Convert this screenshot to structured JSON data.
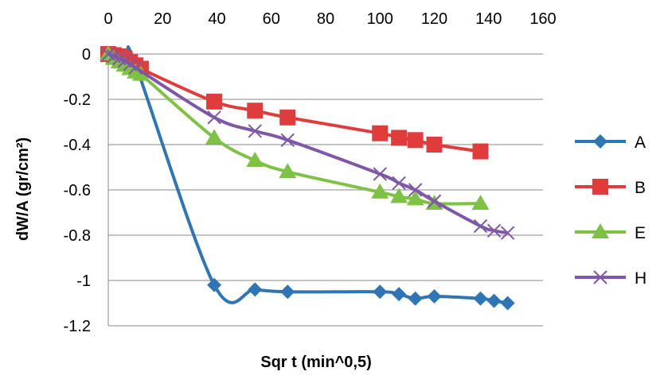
{
  "chart_data": {
    "type": "line",
    "title": "",
    "xlabel": "Sqr t (min^0,5)",
    "ylabel": "dW/A (gr/cm²)",
    "xlim": [
      0,
      160
    ],
    "ylim": [
      -1.2,
      0
    ],
    "x_ticks": [
      "0",
      "20",
      "40",
      "60",
      "80",
      "100",
      "120",
      "140",
      "160"
    ],
    "y_ticks": [
      "0",
      "-0.2",
      "-0.4",
      "-0.6",
      "-0.8",
      "-1",
      "-1.2"
    ],
    "x_axis_position": "top",
    "grid": "horizontal",
    "legend_position": "right",
    "series": [
      {
        "name": "A",
        "color": "#2E75B6",
        "marker": "diamond",
        "points": [
          [
            0,
            0
          ],
          [
            2,
            -0.003
          ],
          [
            4,
            -0.01
          ],
          [
            6,
            -0.02
          ],
          [
            8,
            -0.03
          ],
          [
            10,
            -0.045
          ],
          [
            39,
            -1.02
          ],
          [
            54,
            -1.04
          ],
          [
            66,
            -1.05
          ],
          [
            100,
            -1.05
          ],
          [
            107,
            -1.06
          ],
          [
            113,
            -1.08
          ],
          [
            120,
            -1.07
          ],
          [
            137,
            -1.08
          ],
          [
            142,
            -1.09
          ],
          [
            147,
            -1.1
          ]
        ]
      },
      {
        "name": "B",
        "color": "#E03C3C",
        "marker": "square",
        "points": [
          [
            0,
            0
          ],
          [
            2,
            -0.005
          ],
          [
            4,
            -0.01
          ],
          [
            6,
            -0.02
          ],
          [
            8,
            -0.035
          ],
          [
            10,
            -0.05
          ],
          [
            12,
            -0.065
          ],
          [
            39,
            -0.21
          ],
          [
            54,
            -0.25
          ],
          [
            66,
            -0.28
          ],
          [
            100,
            -0.35
          ],
          [
            107,
            -0.37
          ],
          [
            113,
            -0.38
          ],
          [
            120,
            -0.4
          ],
          [
            137,
            -0.43
          ]
        ]
      },
      {
        "name": "E",
        "color": "#7DC242",
        "marker": "triangle",
        "points": [
          [
            0,
            0
          ],
          [
            2,
            -0.02
          ],
          [
            4,
            -0.035
          ],
          [
            6,
            -0.05
          ],
          [
            8,
            -0.065
          ],
          [
            10,
            -0.08
          ],
          [
            12,
            -0.09
          ],
          [
            39,
            -0.37
          ],
          [
            54,
            -0.47
          ],
          [
            66,
            -0.52
          ],
          [
            100,
            -0.61
          ],
          [
            107,
            -0.63
          ],
          [
            113,
            -0.64
          ],
          [
            120,
            -0.66
          ],
          [
            137,
            -0.66
          ]
        ]
      },
      {
        "name": "H",
        "color": "#7E57A8",
        "marker": "x",
        "points": [
          [
            0,
            0
          ],
          [
            2,
            -0.01
          ],
          [
            4,
            -0.02
          ],
          [
            6,
            -0.03
          ],
          [
            8,
            -0.045
          ],
          [
            10,
            -0.06
          ],
          [
            39,
            -0.28
          ],
          [
            54,
            -0.34
          ],
          [
            66,
            -0.38
          ],
          [
            100,
            -0.53
          ],
          [
            107,
            -0.57
          ],
          [
            113,
            -0.6
          ],
          [
            120,
            -0.65
          ],
          [
            137,
            -0.76
          ],
          [
            142,
            -0.78
          ],
          [
            147,
            -0.79
          ]
        ]
      }
    ]
  }
}
